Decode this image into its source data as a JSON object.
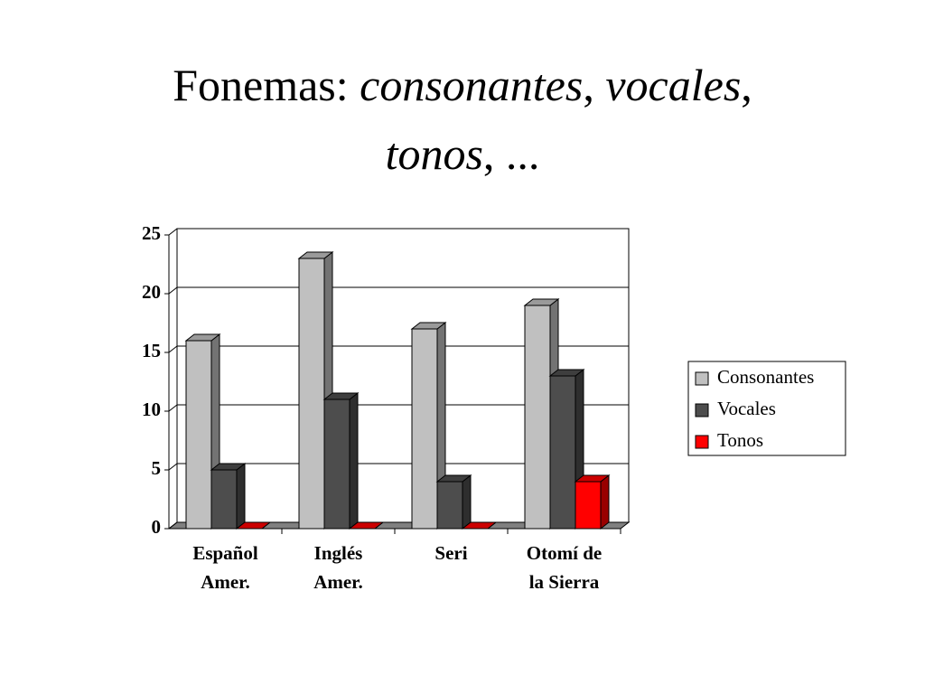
{
  "chart_data": {
    "type": "bar3d",
    "title_lines": [
      [
        {
          "text": "Fonemas:  ",
          "italic": false
        },
        {
          "text": "consonantes",
          "italic": true
        },
        {
          "text": ", ",
          "italic": false
        },
        {
          "text": "vocales",
          "italic": true
        },
        {
          "text": ",",
          "italic": false
        }
      ],
      [
        {
          "text": "tonos",
          "italic": true
        },
        {
          "text": ", ...",
          "italic": false
        }
      ]
    ],
    "categories": [
      [
        "Español",
        "Amer."
      ],
      [
        "Inglés",
        "Amer."
      ],
      [
        "Seri"
      ],
      [
        "Otomí de",
        "la Sierra"
      ]
    ],
    "series": [
      {
        "name": "Consonantes",
        "color": "#c0c0c0",
        "values": [
          16,
          23,
          17,
          19
        ]
      },
      {
        "name": "Vocales",
        "color": "#4d4d4d",
        "values": [
          5,
          11,
          4,
          13
        ]
      },
      {
        "name": "Tonos",
        "color": "#ff0000",
        "values": [
          0,
          0,
          0,
          4
        ]
      }
    ],
    "ylim": [
      0,
      25
    ],
    "yticks": [
      0,
      5,
      10,
      15,
      20,
      25
    ],
    "grid": true,
    "legend": "right"
  }
}
